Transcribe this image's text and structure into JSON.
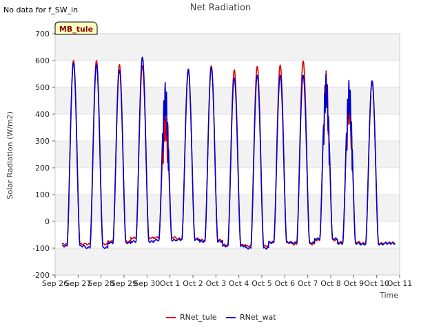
{
  "note": "No data for f_SW_in",
  "chart_data": {
    "type": "line",
    "title": "Net Radiation",
    "xlabel": "Time",
    "ylabel": "Solar Radiation (W/m2)",
    "ylim": [
      -200,
      700
    ],
    "yticks": [
      -200,
      -100,
      0,
      100,
      200,
      300,
      400,
      500,
      600,
      700
    ],
    "xlim": [
      0,
      15
    ],
    "xticks": [
      {
        "x": 0,
        "label": "Sep 26"
      },
      {
        "x": 1,
        "label": "Sep 27"
      },
      {
        "x": 2,
        "label": "Sep 28"
      },
      {
        "x": 3,
        "label": "Sep 29"
      },
      {
        "x": 4,
        "label": "Sep 30"
      },
      {
        "x": 5,
        "label": "Oct 1"
      },
      {
        "x": 6,
        "label": "Oct 2"
      },
      {
        "x": 7,
        "label": "Oct 3"
      },
      {
        "x": 8,
        "label": "Oct 4"
      },
      {
        "x": 9,
        "label": "Oct 5"
      },
      {
        "x": 10,
        "label": "Oct 6"
      },
      {
        "x": 11,
        "label": "Oct 7"
      },
      {
        "x": 12,
        "label": "Oct 8"
      },
      {
        "x": 13,
        "label": "Oct 9"
      },
      {
        "x": 14,
        "label": "Oct 10"
      },
      {
        "x": 15,
        "label": "Oct 11"
      }
    ],
    "grid": true,
    "legend_placement": "bottom-center",
    "annotation": "MB_tule",
    "series": [
      {
        "name": "RNet_tule",
        "color": "#dd0000",
        "night": [
          -85,
          -85,
          -75,
          -62,
          -60,
          -65,
          -70,
          -88,
          -92,
          -80,
          -85,
          -70,
          -78,
          -82,
          -80
        ],
        "peak": [
          600,
          600,
          585,
          580,
          430,
          560,
          580,
          565,
          578,
          583,
          598,
          562,
          495,
          522,
          0
        ]
      },
      {
        "name": "RNet_wat",
        "color": "#0000cc",
        "night": [
          -92,
          -98,
          -80,
          -75,
          -70,
          -68,
          -75,
          -92,
          -100,
          -78,
          -80,
          -65,
          -82,
          -85,
          -82
        ],
        "peak": [
          592,
          585,
          565,
          612,
          520,
          568,
          575,
          535,
          545,
          545,
          545,
          550,
          528,
          524,
          0
        ]
      }
    ]
  }
}
